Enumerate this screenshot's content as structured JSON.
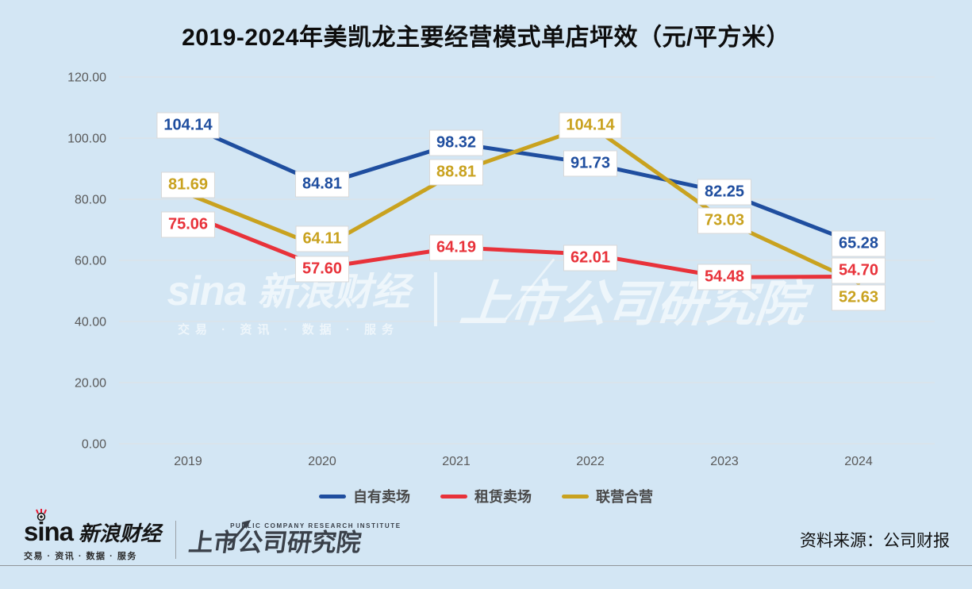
{
  "title": "2019-2024年美凯龙主要经营模式单店坪效（元/平方米）",
  "chart_data": {
    "type": "line",
    "categories": [
      "2019",
      "2020",
      "2021",
      "2022",
      "2023",
      "2024"
    ],
    "series": [
      {
        "name": "自有卖场",
        "color": "#1f4e9f",
        "values": [
          104.14,
          84.81,
          98.32,
          91.73,
          82.25,
          65.28
        ]
      },
      {
        "name": "租赁卖场",
        "color": "#e8323a",
        "values": [
          75.06,
          57.6,
          64.19,
          62.01,
          54.48,
          54.7
        ]
      },
      {
        "name": "联营合营",
        "color": "#c9a21f",
        "values": [
          81.69,
          64.11,
          88.81,
          104.14,
          73.03,
          52.63
        ]
      }
    ],
    "title": "2019-2024年美凯龙主要经营模式单店坪效（元/平方米）",
    "xlabel": "",
    "ylabel": "",
    "ylim": [
      0,
      120
    ],
    "y_ticks": [
      "0.00",
      "20.00",
      "40.00",
      "60.00",
      "80.00",
      "100.00",
      "120.00"
    ],
    "grid": true,
    "legend_position": "bottom",
    "data_labels": true
  },
  "colors": {
    "background": "#d3e6f4",
    "gridline": "#dfe3e4",
    "axis_text": "#595959",
    "label_box_border": "#d8d8d8"
  },
  "watermark": {
    "brand": "sina",
    "brand_cn": "新浪财经",
    "tagline": "交易 · 资讯 · 数据 · 服务",
    "institute": "上市公司研究院"
  },
  "footer": {
    "brand": "sina",
    "brand_cn": "新浪财经",
    "tagline": "交易 · 资讯 · 数据 · 服务",
    "institute_en": "PUBLIC COMPANY RESEARCH INSTITUTE",
    "institute": "上市公司研究院",
    "source": "资料来源：公司财报"
  }
}
